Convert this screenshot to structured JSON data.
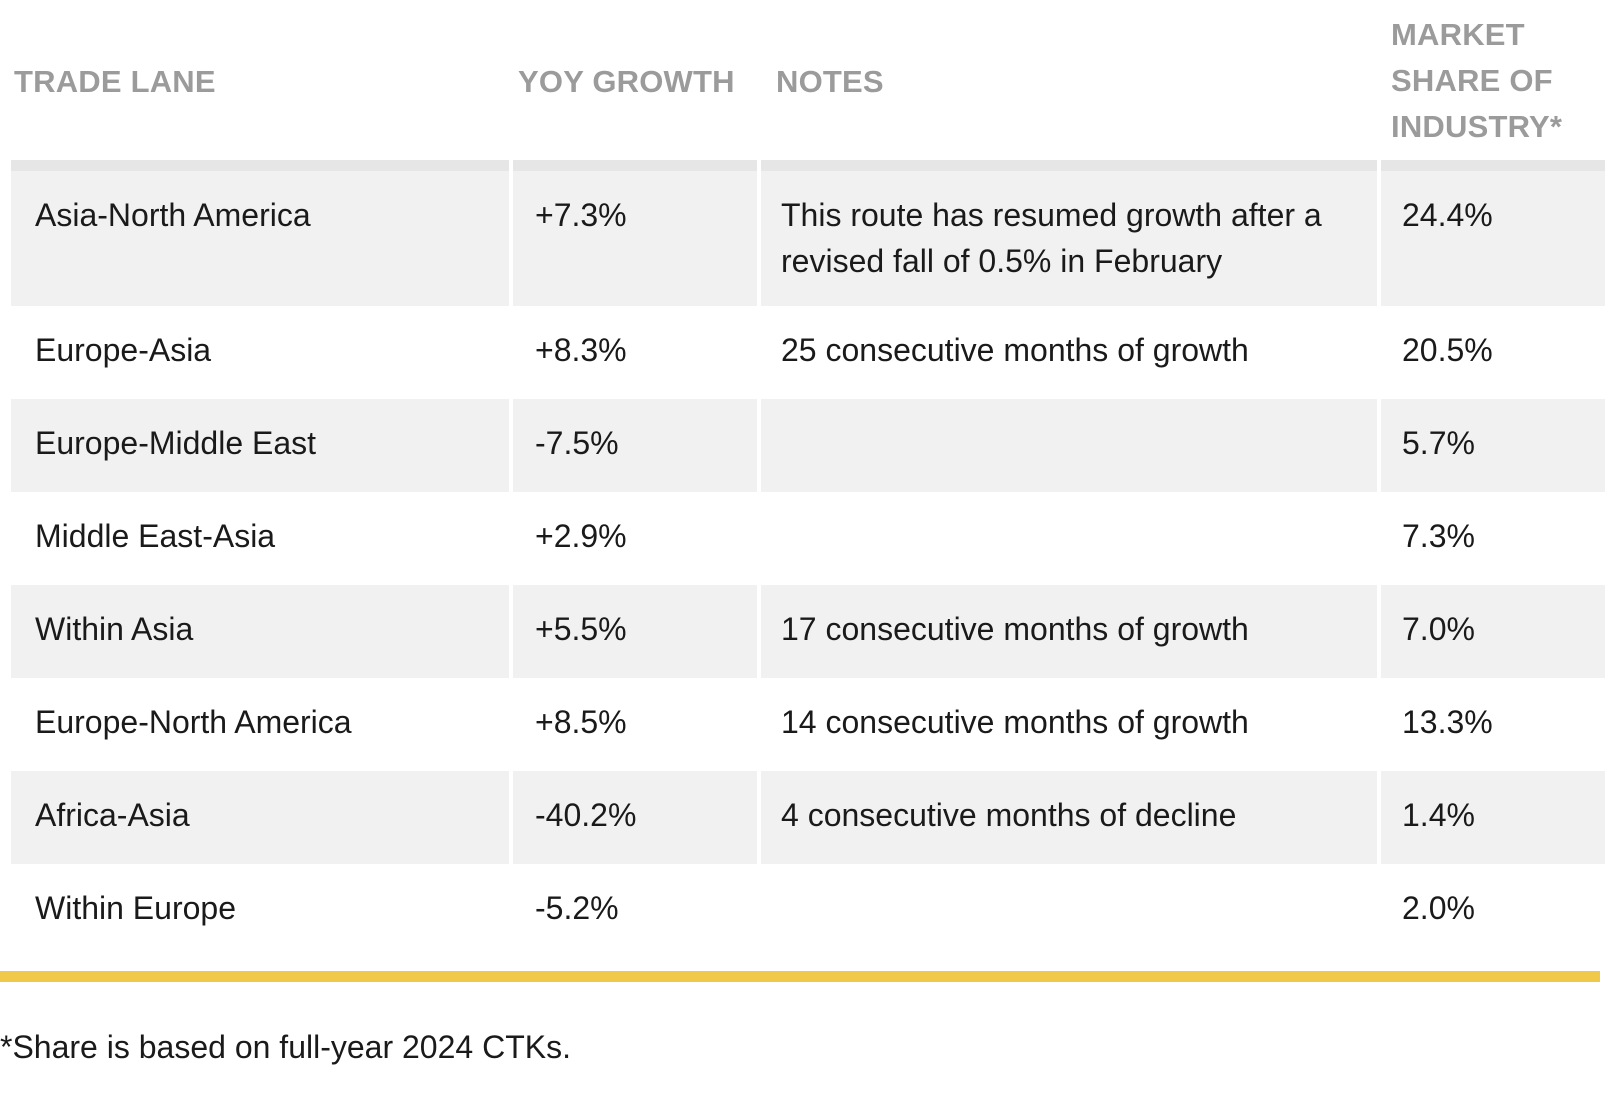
{
  "table": {
    "headers": {
      "trade_lane": "TRADE LANE",
      "yoy_growth": "YOY GROWTH",
      "notes": "NOTES",
      "market_share": "MARKET SHARE OF INDUSTRY*"
    },
    "rows": [
      {
        "lane": "Asia-North America",
        "growth": "+7.3%",
        "notes": "This route has resumed growth after a revised fall of 0.5% in February",
        "share": "24.4%"
      },
      {
        "lane": "Europe-Asia",
        "growth": "+8.3%",
        "notes": "25 consecutive months of growth",
        "share": "20.5%"
      },
      {
        "lane": "Europe-Middle East",
        "growth": "-7.5%",
        "notes": "",
        "share": "5.7%"
      },
      {
        "lane": "Middle East-Asia",
        "growth": "+2.9%",
        "notes": "",
        "share": "7.3%"
      },
      {
        "lane": "Within Asia",
        "growth": "+5.5%",
        "notes": "17 consecutive months of growth",
        "share": "7.0%"
      },
      {
        "lane": "Europe-North America",
        "growth": "+8.5%",
        "notes": "14 consecutive months of growth",
        "share": "13.3%"
      },
      {
        "lane": "Africa-Asia",
        "growth": "-40.2%",
        "notes": "4 consecutive months of decline",
        "share": "1.4%"
      },
      {
        "lane": "Within Europe",
        "growth": "-5.2%",
        "notes": "",
        "share": "2.0%"
      }
    ]
  },
  "footnote": "*Share is based on full-year 2024 CTKs.",
  "colors": {
    "header_text": "#9b9b9b",
    "shaded_row": "#f1f1f1",
    "accent_rule": "#f0c94a"
  }
}
